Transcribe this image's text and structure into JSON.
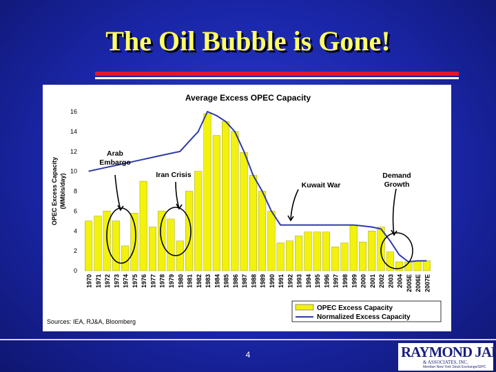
{
  "slide": {
    "title": "The Oil Bubble is Gone!",
    "page_number": "4",
    "logo": {
      "name": "RAYMOND JAMES",
      "sub": "& ASSOCIATES, INC.",
      "tagline": "Member New York Stock Exchange/SIPC"
    }
  },
  "chart_data": {
    "type": "bar",
    "title": "Average Excess OPEC Capacity",
    "ylabel": "OPEC Excess Capacity\n(MMbls/day)",
    "xlabel": "",
    "ylim": [
      0,
      16
    ],
    "yticks": [
      0,
      2,
      4,
      6,
      8,
      10,
      12,
      14,
      16
    ],
    "categories": [
      "1970",
      "1971",
      "1972",
      "1973",
      "1974",
      "1975",
      "1976",
      "1977",
      "1978",
      "1979",
      "1980",
      "1981",
      "1982",
      "1983",
      "1984",
      "1985",
      "1986",
      "1987",
      "1988",
      "1989",
      "1990",
      "1991",
      "1992",
      "1993",
      "1994",
      "1995",
      "1996",
      "1997",
      "1998",
      "1999",
      "2000",
      "2001",
      "2002",
      "2003",
      "2004",
      "2005E",
      "2006E",
      "2007E"
    ],
    "series": [
      {
        "name": "OPEC Excess Capacity",
        "type": "bar",
        "color": "#f2f20c",
        "values": [
          5.0,
          5.5,
          6.0,
          5.0,
          2.5,
          5.8,
          9.0,
          4.4,
          6.0,
          5.2,
          3.0,
          8.0,
          10.0,
          15.8,
          13.6,
          15.0,
          14.0,
          11.9,
          9.6,
          8.0,
          6.0,
          2.8,
          3.0,
          3.5,
          3.9,
          3.9,
          3.9,
          2.4,
          2.8,
          4.6,
          2.9,
          4.0,
          4.4,
          1.9,
          0.9,
          0.9,
          1.0,
          1.0
        ]
      },
      {
        "name": "Normalized Excess Capacity",
        "type": "line",
        "color": "#2e3aa6",
        "values": [
          10.0,
          10.2,
          10.4,
          10.6,
          10.8,
          11.0,
          11.2,
          11.4,
          11.6,
          11.8,
          12.0,
          13.0,
          14.0,
          16.0,
          15.6,
          15.0,
          14.0,
          12.0,
          9.6,
          8.0,
          6.0,
          4.6,
          4.6,
          4.6,
          4.6,
          4.6,
          4.6,
          4.6,
          4.6,
          4.6,
          4.5,
          4.4,
          4.2,
          3.0,
          1.6,
          0.9,
          1.0,
          1.0
        ]
      }
    ],
    "annotations": [
      {
        "text": "Arab\nEmbargo",
        "index": 4
      },
      {
        "text": "Iran Crisis",
        "index": 9
      },
      {
        "text": "Kuwait War",
        "index": 22
      },
      {
        "text": "Demand\nGrowth",
        "index": 35
      }
    ],
    "legend": "bottom-right",
    "source": "Sources: IEA, RJ&A, Bloomberg",
    "grid": false
  }
}
